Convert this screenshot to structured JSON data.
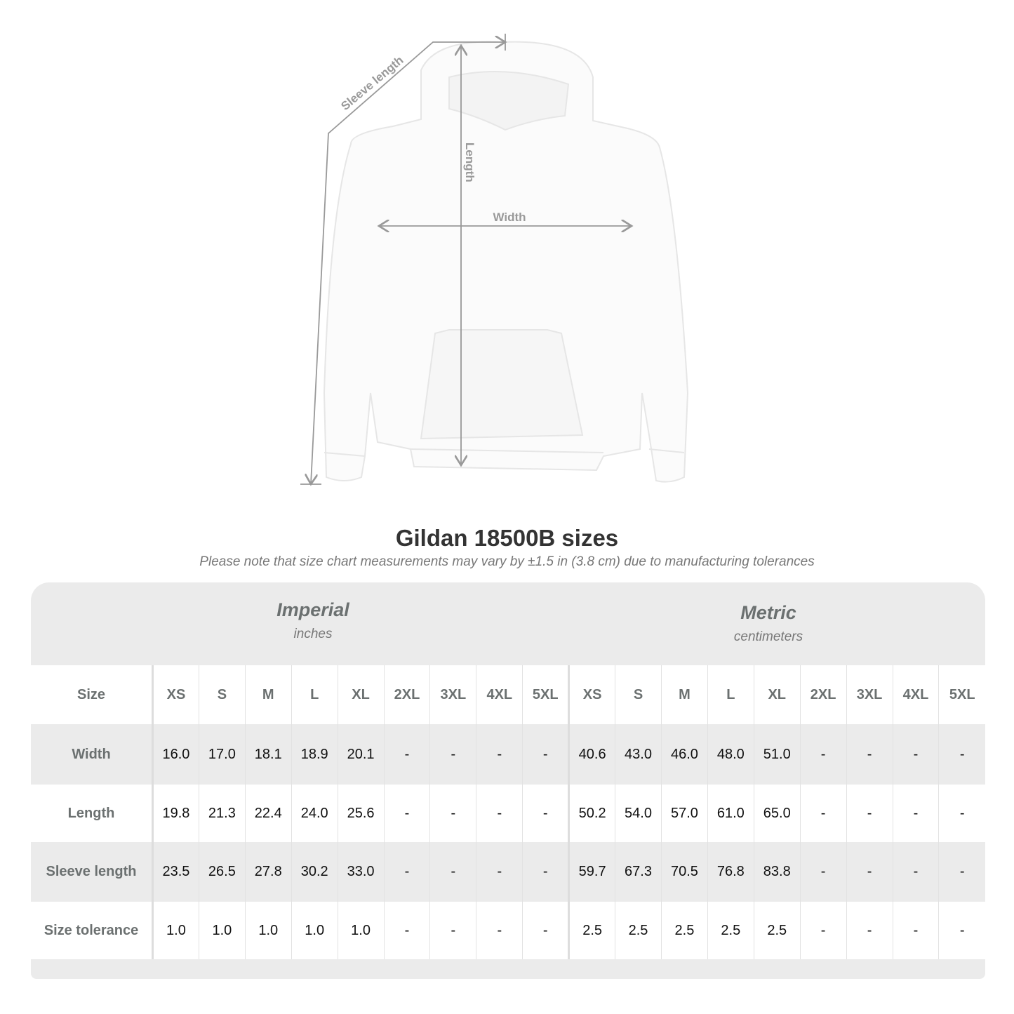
{
  "diagram": {
    "labels": {
      "sleeve": "Sleeve length",
      "length": "Length",
      "width": "Width"
    },
    "line_color": "#999999"
  },
  "title": "Gildan 18500B sizes",
  "subtitle": "Please note that size chart measurements may vary by ±1.5 in (3.8 cm) due to manufacturing tolerances",
  "imperial": {
    "name": "Imperial",
    "unit": "inches"
  },
  "metric": {
    "name": "Metric",
    "unit": "centimeters"
  },
  "table": {
    "size_label": "Size",
    "sizes": [
      "XS",
      "S",
      "M",
      "L",
      "XL",
      "2XL",
      "3XL",
      "4XL",
      "5XL"
    ],
    "rows": [
      {
        "label": "Width",
        "imperial": [
          "16.0",
          "17.0",
          "18.1",
          "18.9",
          "20.1",
          "-",
          "-",
          "-",
          "-"
        ],
        "metric": [
          "40.6",
          "43.0",
          "46.0",
          "48.0",
          "51.0",
          "-",
          "-",
          "-",
          "-"
        ]
      },
      {
        "label": "Length",
        "imperial": [
          "19.8",
          "21.3",
          "22.4",
          "24.0",
          "25.6",
          "-",
          "-",
          "-",
          "-"
        ],
        "metric": [
          "50.2",
          "54.0",
          "57.0",
          "61.0",
          "65.0",
          "-",
          "-",
          "-",
          "-"
        ]
      },
      {
        "label": "Sleeve length",
        "imperial": [
          "23.5",
          "26.5",
          "27.8",
          "30.2",
          "33.0",
          "-",
          "-",
          "-",
          "-"
        ],
        "metric": [
          "59.7",
          "67.3",
          "70.5",
          "76.8",
          "83.8",
          "-",
          "-",
          "-",
          "-"
        ]
      },
      {
        "label": "Size tolerance",
        "imperial": [
          "1.0",
          "1.0",
          "1.0",
          "1.0",
          "1.0",
          "-",
          "-",
          "-",
          "-"
        ],
        "metric": [
          "2.5",
          "2.5",
          "2.5",
          "2.5",
          "2.5",
          "-",
          "-",
          "-",
          "-"
        ]
      }
    ]
  }
}
